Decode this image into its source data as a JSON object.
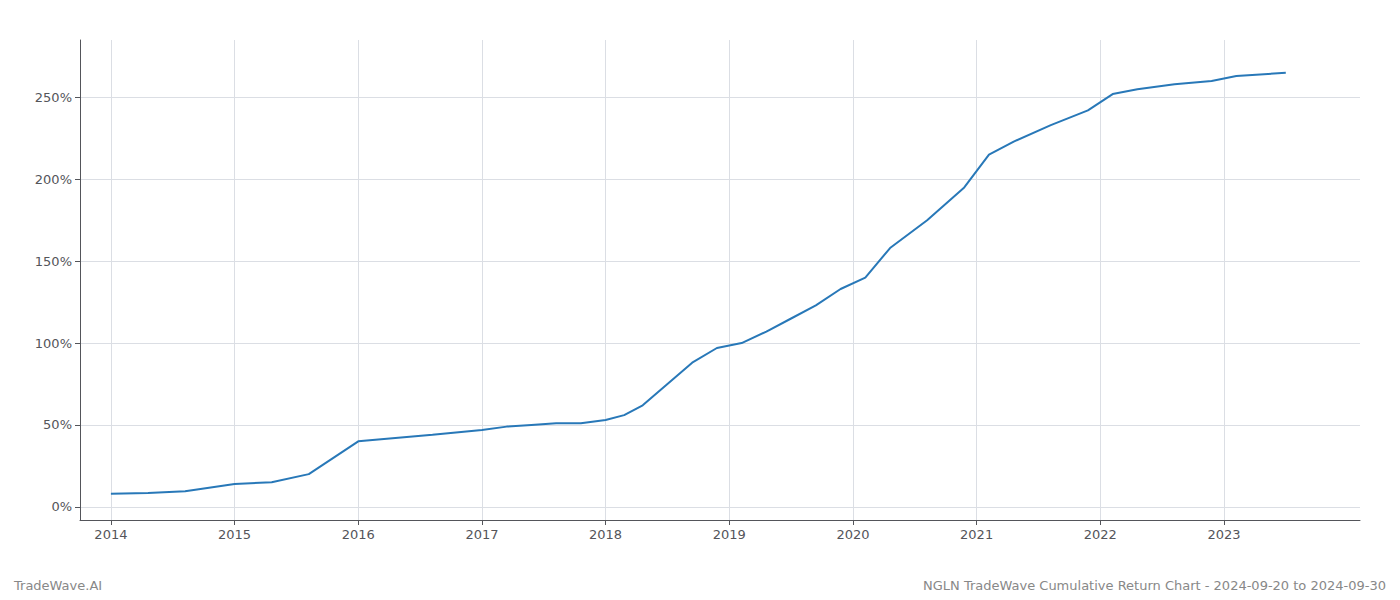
{
  "chart_data": {
    "type": "line",
    "x": [
      2014.0,
      2014.3,
      2014.6,
      2015.0,
      2015.3,
      2015.6,
      2016.0,
      2016.3,
      2016.6,
      2017.0,
      2017.2,
      2017.4,
      2017.6,
      2017.8,
      2018.0,
      2018.15,
      2018.3,
      2018.5,
      2018.7,
      2018.9,
      2019.1,
      2019.3,
      2019.5,
      2019.7,
      2019.9,
      2020.1,
      2020.3,
      2020.6,
      2020.9,
      2021.1,
      2021.3,
      2021.6,
      2021.9,
      2022.1,
      2022.3,
      2022.6,
      2022.9,
      2023.1,
      2023.5
    ],
    "values": [
      8,
      8.5,
      9.5,
      14,
      15,
      20,
      40,
      42,
      44,
      47,
      49,
      50,
      51,
      51,
      53,
      56,
      62,
      75,
      88,
      97,
      100,
      107,
      115,
      123,
      133,
      140,
      158,
      175,
      195,
      215,
      223,
      233,
      242,
      252,
      255,
      258,
      260,
      263,
      265
    ],
    "color": "#2878b8",
    "xlim": [
      2013.75,
      2024.1
    ],
    "xticks": [
      2014,
      2015,
      2016,
      2017,
      2018,
      2019,
      2020,
      2021,
      2022,
      2023
    ],
    "ylim": [
      -8,
      285
    ],
    "yticks": [
      {
        "value": 0,
        "label": "0%"
      },
      {
        "value": 50,
        "label": "50%"
      },
      {
        "value": 100,
        "label": "100%"
      },
      {
        "value": 150,
        "label": "150%"
      },
      {
        "value": 200,
        "label": "200%"
      },
      {
        "value": 250,
        "label": "250%"
      }
    ],
    "grid": true,
    "annotations": [
      "TradeWave.AI",
      "NGLN TradeWave Cumulative Return Chart - 2024-09-20 to 2024-09-30"
    ]
  }
}
